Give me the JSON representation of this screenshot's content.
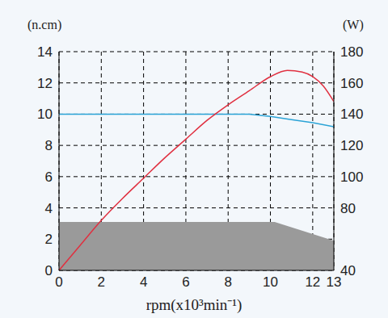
{
  "chart_data": {
    "type": "line",
    "x_label": "rpm(x10³min⁻¹)",
    "y_label": "(n.cm)",
    "y2_label": "(W)",
    "xlim": [
      0,
      13
    ],
    "xticks": [
      0,
      2,
      4,
      6,
      8,
      10,
      12,
      13
    ],
    "ylim": [
      0,
      14
    ],
    "yticks": [
      0,
      2,
      4,
      6,
      8,
      10,
      12,
      14
    ],
    "y2lim": [
      40,
      180
    ],
    "y2ticks": [
      40,
      80,
      100,
      120,
      140,
      160,
      180
    ],
    "grid": true,
    "series": [
      {
        "type": "area",
        "color": "#9a9a9a",
        "x": [
          0,
          10.2,
          13
        ],
        "values": [
          3.1,
          3.1,
          1.9
        ]
      },
      {
        "type": "line",
        "color": "#2aa3d6",
        "x": [
          0,
          2,
          4,
          6,
          8,
          9,
          10,
          11,
          12,
          13
        ],
        "values": [
          10,
          10,
          10,
          10,
          10,
          10,
          9.85,
          9.65,
          9.45,
          9.2
        ]
      },
      {
        "type": "line",
        "color": "#e03040",
        "axis": "y2",
        "x": [
          0,
          1,
          2,
          3,
          4,
          5,
          6,
          7,
          8,
          9,
          10,
          10.8,
          11.5,
          12,
          12.5,
          13
        ],
        "values": [
          40,
          56,
          72,
          86,
          99,
          112,
          124,
          136,
          146,
          155,
          164,
          168,
          167,
          164,
          158,
          148
        ]
      }
    ]
  }
}
